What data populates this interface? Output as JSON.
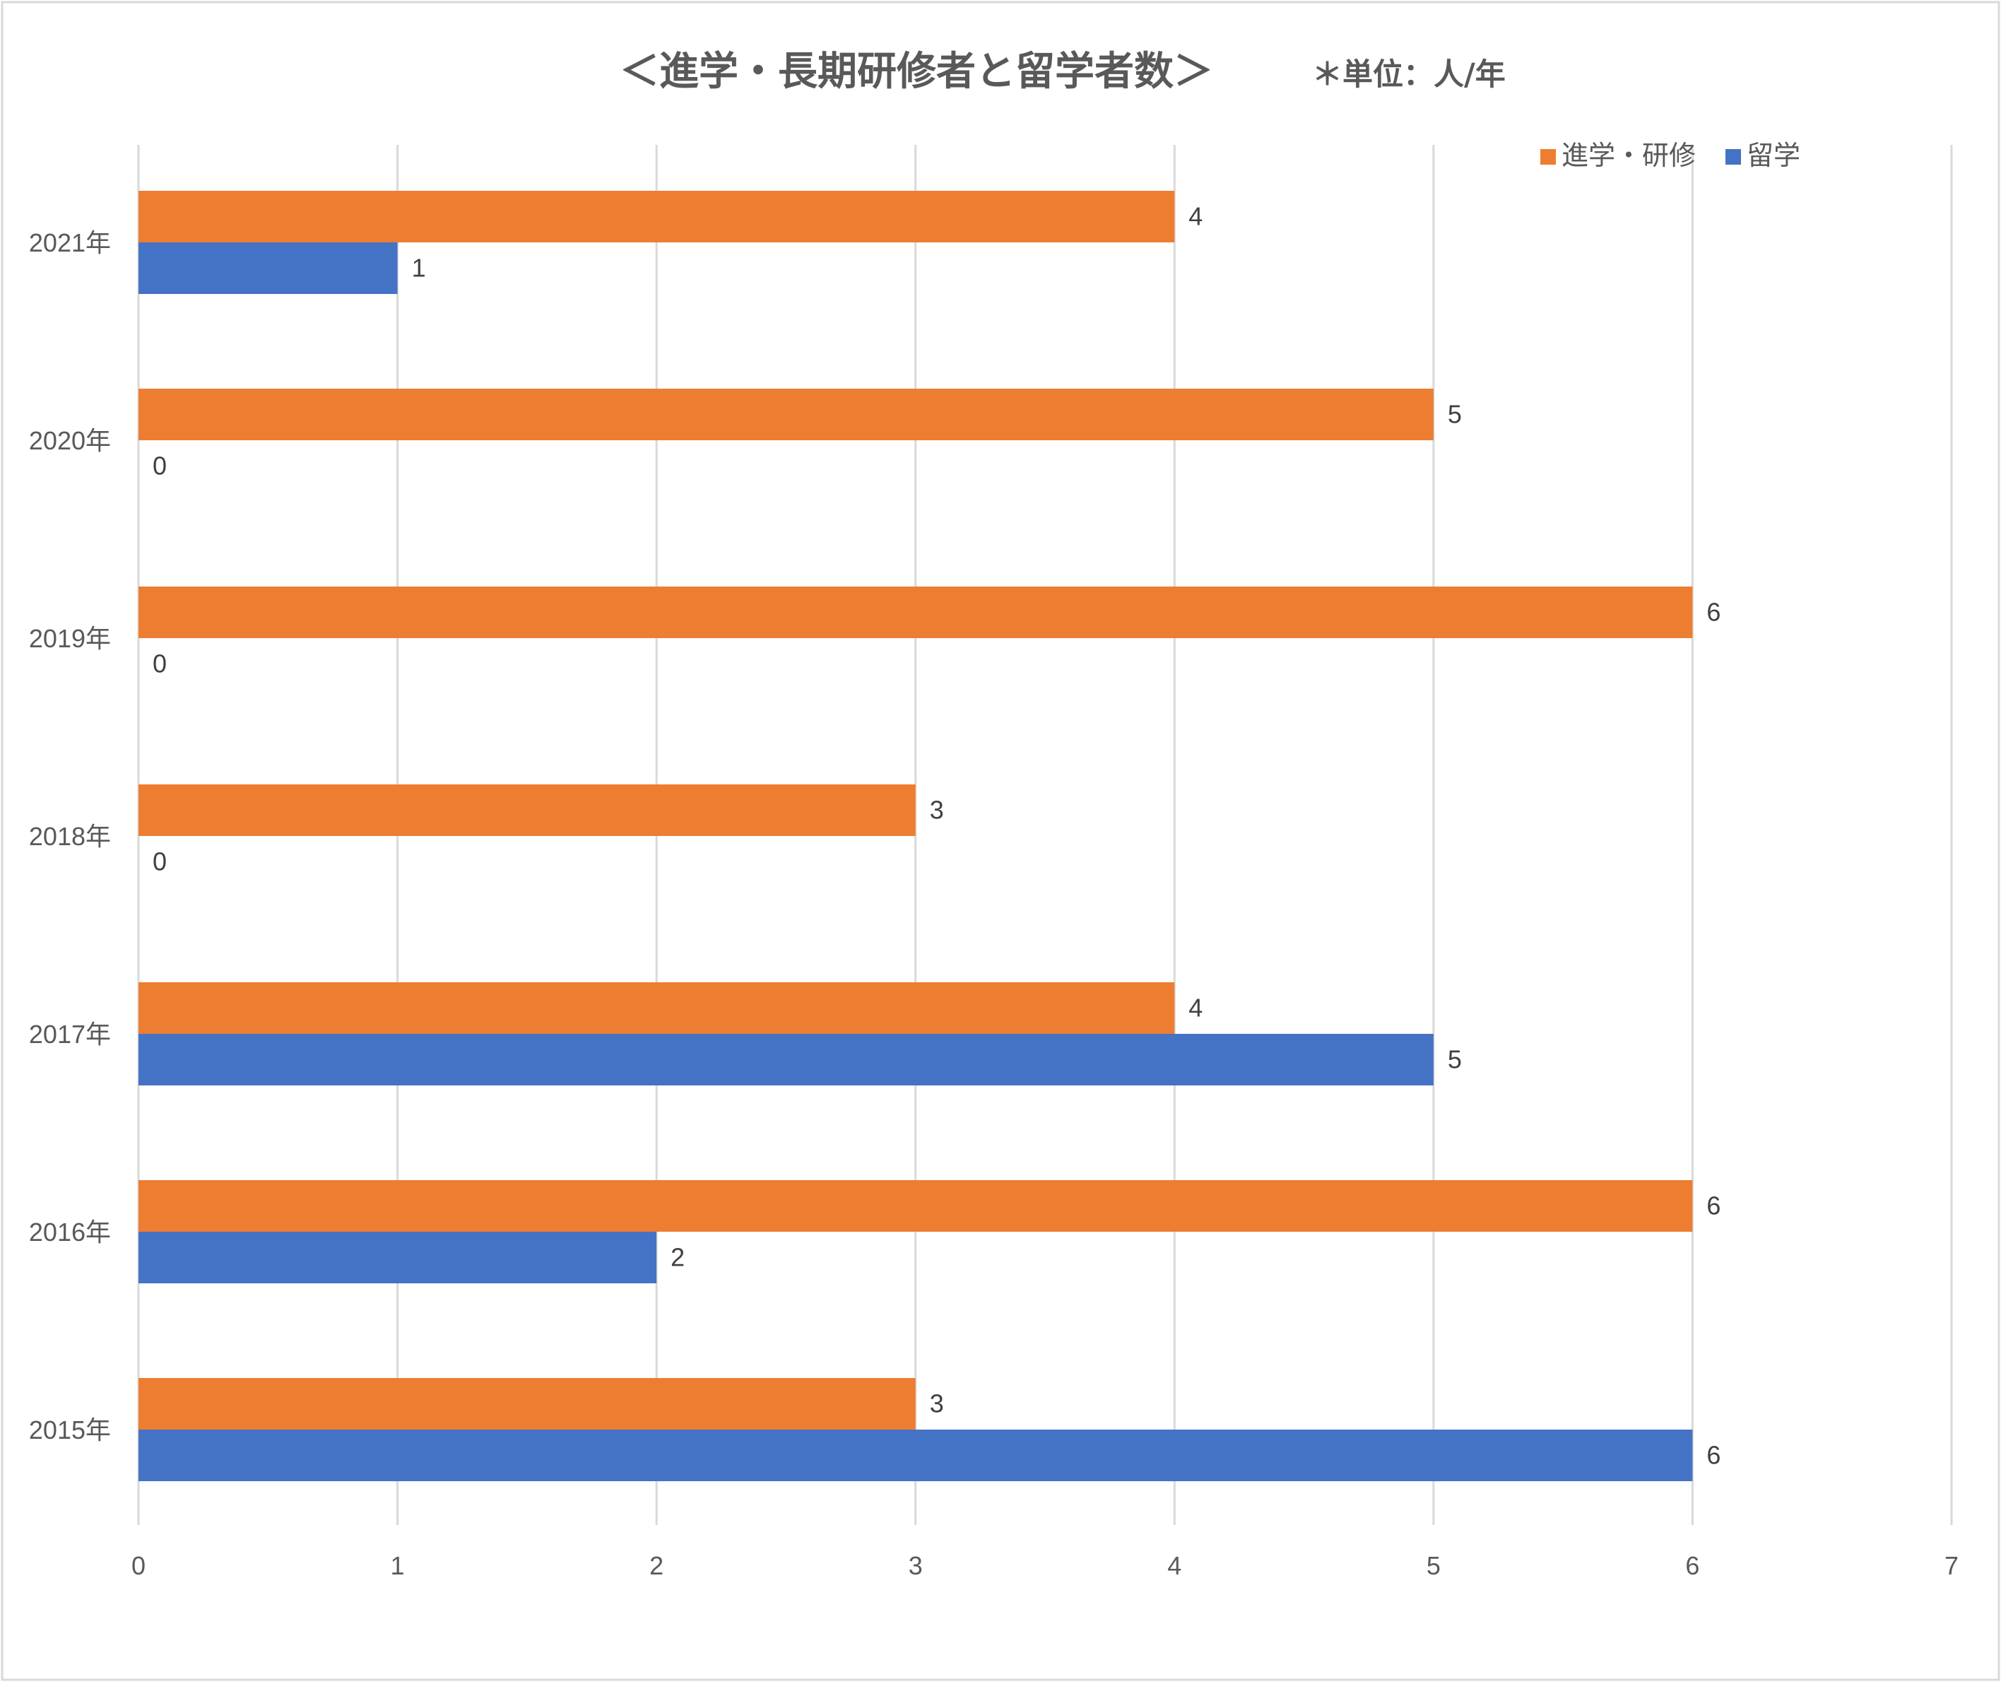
{
  "chart_data": {
    "type": "bar",
    "orientation": "horizontal",
    "title": "＜進学・長期研修者と留学者数＞",
    "unit_note": "＊単位：人/年",
    "categories": [
      "2021年",
      "2020年",
      "2019年",
      "2018年",
      "2017年",
      "2016年",
      "2015年"
    ],
    "series": [
      {
        "name": "進学・研修",
        "color": "#ED7D31",
        "values": [
          4,
          5,
          6,
          3,
          4,
          6,
          3
        ]
      },
      {
        "name": "留学",
        "color": "#4472C4",
        "values": [
          1,
          0,
          0,
          0,
          5,
          2,
          6
        ]
      }
    ],
    "xlim": [
      0,
      7
    ],
    "xticks": [
      0,
      1,
      2,
      3,
      4,
      5,
      6,
      7
    ],
    "grid": true,
    "legend_position": "top-right"
  }
}
